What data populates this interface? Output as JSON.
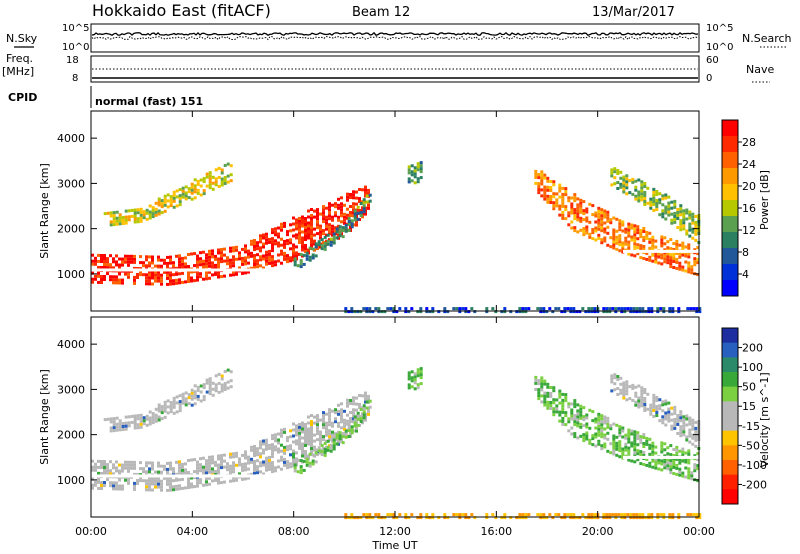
{
  "header": {
    "title": "Hokkaido East (fitACF)",
    "beam": "Beam 12",
    "date": "13/Mar/2017"
  },
  "top_panels": {
    "nsky_label": "N.Sky",
    "nsearch_label": "N.Search",
    "left_ticks": [
      "10^5",
      "10^0"
    ],
    "right_ticks": [
      "10^5",
      "10^0"
    ],
    "freq_label_top": "Freq.",
    "freq_label_bottom": "[MHz]",
    "freq_ticks": [
      "18",
      "8"
    ],
    "nave_label": "Nave",
    "nave_ticks": [
      "60",
      "0"
    ],
    "cpid_label": "CPID",
    "cpid_text": "normal (fast) 151"
  },
  "power_colorbar": {
    "label": "Power [dB]",
    "ticks": [
      "28",
      "24",
      "20",
      "16",
      "12",
      "8",
      "4"
    ],
    "colors": [
      "#ff0000",
      "#ff2a00",
      "#ff6000",
      "#ff9900",
      "#ffc000",
      "#b5c800",
      "#5aa050",
      "#2a8060",
      "#20589a",
      "#0030d8",
      "#0000ff"
    ]
  },
  "velocity_colorbar": {
    "label": "Velocity [m s^-1]",
    "ticks": [
      "200",
      "100",
      "50",
      "15",
      "-15",
      "-50",
      "-100",
      "-200"
    ],
    "colors": [
      "#1c2ea0",
      "#2860c0",
      "#2a8a6a",
      "#38a838",
      "#7ad040",
      "#b8b8b8",
      "#b8b8b8",
      "#ffc400",
      "#ff9600",
      "#ff6000",
      "#ff2000",
      "#ff0000"
    ]
  },
  "chart_data": {
    "type": "heatmap",
    "ylabel": "Slant Range [km]",
    "xlabel": "Time UT",
    "x_ticks": [
      "00:00",
      "04:00",
      "08:00",
      "12:00",
      "16:00",
      "20:00",
      "00:00"
    ],
    "y_ticks": [
      "1000",
      "2000",
      "3000",
      "4000"
    ],
    "xlim_hours": [
      0,
      24
    ],
    "ylim_km": [
      180,
      4600
    ],
    "echo_bands": [
      {
        "t": [
          0,
          3,
          6,
          8,
          10,
          11
        ],
        "r_lo": [
          850,
          800,
          1050,
          1350,
          1900,
          2400
        ],
        "r_hi": [
          1450,
          1400,
          1700,
          2300,
          2800,
          3000
        ],
        "power_db": 28,
        "velocity": "-15 to 15"
      },
      {
        "t": [
          0.5,
          2,
          4,
          5.5
        ],
        "r_lo": [
          2100,
          2200,
          2700,
          3100
        ],
        "r_hi": [
          2400,
          2500,
          3100,
          3500
        ],
        "power_db": 18,
        "velocity": "-15 to 15"
      },
      {
        "t": [
          8,
          10,
          11
        ],
        "r_lo": [
          1100,
          1900,
          2600
        ],
        "r_hi": [
          1400,
          2200,
          2900
        ],
        "power_db": 12,
        "velocity": "15 to 50"
      },
      {
        "t": [
          12.5,
          13
        ],
        "r_lo": [
          3000,
          3100
        ],
        "r_hi": [
          3400,
          3500
        ],
        "power_db": 14,
        "velocity": "15 to 50"
      },
      {
        "t": [
          17.5,
          19,
          21,
          24
        ],
        "r_lo": [
          2900,
          2000,
          1500,
          1000
        ],
        "r_hi": [
          3400,
          2800,
          2200,
          1600
        ],
        "power_db": 24,
        "velocity": "15 to 50"
      },
      {
        "t": [
          20.5,
          22,
          24
        ],
        "r_lo": [
          3000,
          2500,
          1700
        ],
        "r_hi": [
          3400,
          3000,
          2300
        ],
        "power_db": 16,
        "velocity": "-15 to 15"
      },
      {
        "t": [
          10,
          14,
          18,
          24
        ],
        "r_lo": [
          200,
          200,
          200,
          200
        ],
        "r_hi": [
          320,
          320,
          320,
          320
        ],
        "power_db": 8,
        "velocity": "-15 to -50"
      }
    ]
  }
}
